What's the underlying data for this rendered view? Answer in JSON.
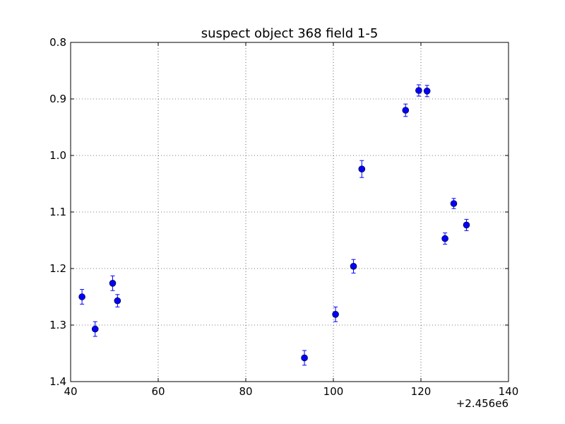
{
  "chart_data": {
    "type": "scatter",
    "title": "suspect object 368 field 1-5",
    "xlabel": "",
    "ylabel": "",
    "x_offset_label": "+2.456e6",
    "xlim": [
      2456040,
      2456140
    ],
    "ylim": [
      1.4,
      0.8
    ],
    "y_inverted": true,
    "grid": true,
    "x_ticks": [
      40,
      60,
      80,
      100,
      120,
      140
    ],
    "x_tick_labels": [
      "40",
      "60",
      "80",
      "100",
      "120",
      "140"
    ],
    "y_ticks": [
      0.8,
      0.9,
      1.0,
      1.1,
      1.2,
      1.3,
      1.4
    ],
    "y_tick_labels": [
      "0.8",
      "0.9",
      "1.0",
      "1.1",
      "1.2",
      "1.3",
      "1.4"
    ],
    "marker_color": "#0000ff",
    "points": [
      {
        "x": 2456042.6,
        "y": 1.25,
        "yerr": 0.013
      },
      {
        "x": 2456045.6,
        "y": 1.307,
        "yerr": 0.013
      },
      {
        "x": 2456049.6,
        "y": 1.226,
        "yerr": 0.013
      },
      {
        "x": 2456050.7,
        "y": 1.257,
        "yerr": 0.011
      },
      {
        "x": 2456093.4,
        "y": 1.358,
        "yerr": 0.013
      },
      {
        "x": 2456100.5,
        "y": 1.281,
        "yerr": 0.013
      },
      {
        "x": 2456104.6,
        "y": 1.196,
        "yerr": 0.012
      },
      {
        "x": 2456106.5,
        "y": 1.024,
        "yerr": 0.015
      },
      {
        "x": 2456116.5,
        "y": 0.92,
        "yerr": 0.011
      },
      {
        "x": 2456119.5,
        "y": 0.885,
        "yerr": 0.01
      },
      {
        "x": 2456121.4,
        "y": 0.886,
        "yerr": 0.01
      },
      {
        "x": 2456125.5,
        "y": 1.147,
        "yerr": 0.01
      },
      {
        "x": 2456127.5,
        "y": 1.085,
        "yerr": 0.009
      },
      {
        "x": 2456130.4,
        "y": 1.123,
        "yerr": 0.01
      }
    ]
  }
}
